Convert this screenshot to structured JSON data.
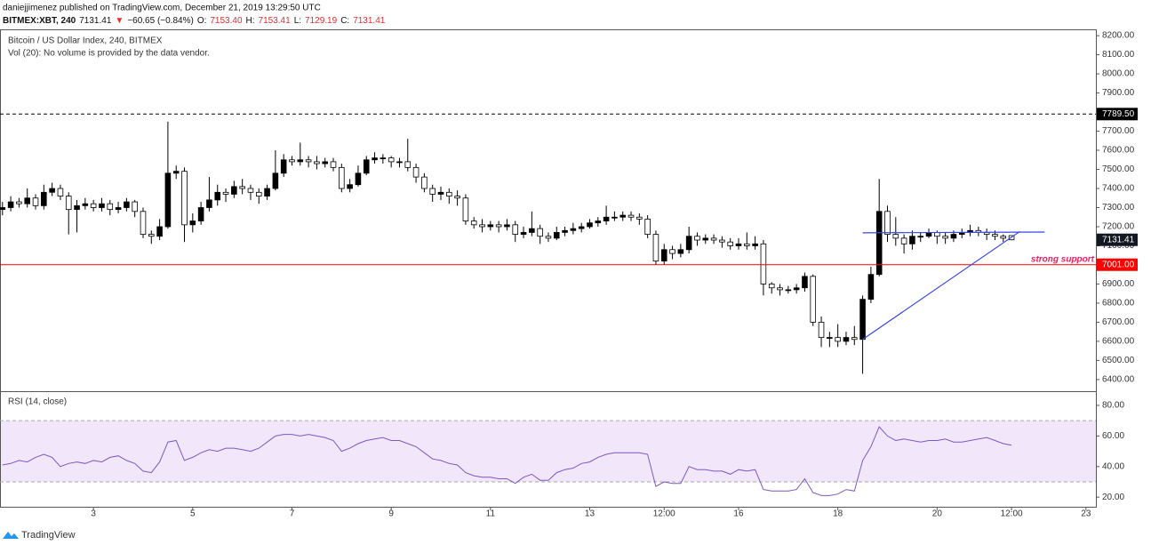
{
  "header": {
    "author": "daniejjimenez published on TradingView.com, December 21, 2019 13:29:50 UTC",
    "quote": [
      {
        "text": "BITMEX:XBT, 240",
        "color": "#111",
        "bold": true
      },
      {
        "text": "7131.41",
        "color": "#111"
      },
      {
        "text": "▼",
        "color": "#e03030"
      },
      {
        "text": "−60.65 (−0.84%)",
        "color": "#111"
      },
      {
        "text": "O:",
        "color": "#111"
      },
      {
        "text": "7153.40",
        "color": "#e03030"
      },
      {
        "text": "H:",
        "color": "#111"
      },
      {
        "text": "7153.41",
        "color": "#e03030"
      },
      {
        "text": "L:",
        "color": "#111"
      },
      {
        "text": "7129.19",
        "color": "#e03030"
      },
      {
        "text": "C:",
        "color": "#111"
      },
      {
        "text": "7131.41",
        "color": "#e03030"
      }
    ]
  },
  "footer": {
    "brand": "TradingView"
  },
  "chart_data": [
    {
      "type": "candlestick",
      "title": "Bitcoin / US Dollar Index, 240, BITMEX",
      "subtitle": "Vol (20): No volume is provided by the data vendor.",
      "up_color": "#000000",
      "down_color": "#ffffff",
      "open": [
        7290,
        7300,
        7330,
        7320,
        7350,
        7310,
        7380,
        7400,
        7360,
        7290,
        7310,
        7320,
        7300,
        7320,
        7290,
        7300,
        7330,
        7280,
        7160,
        7150,
        7200,
        7480,
        7490,
        7210,
        7230,
        7300,
        7340,
        7380,
        7370,
        7410,
        7400,
        7380,
        7360,
        7400,
        7480,
        7550,
        7540,
        7550,
        7540,
        7530,
        7540,
        7510,
        7400,
        7420,
        7480,
        7550,
        7560,
        7560,
        7540,
        7540,
        7510,
        7460,
        7400,
        7370,
        7380,
        7360,
        7350,
        7230,
        7210,
        7200,
        7210,
        7200,
        7210,
        7160,
        7170,
        7190,
        7150,
        7140,
        7170,
        7180,
        7190,
        7200,
        7220,
        7230,
        7250,
        7250,
        7260,
        7250,
        7240,
        7160,
        7020,
        7080,
        7060,
        7080,
        7150,
        7130,
        7140,
        7130,
        7120,
        7100,
        7110,
        7100,
        7110,
        6900,
        6880,
        6870,
        6870,
        6880,
        6940,
        6700,
        6620,
        6620,
        6600,
        6620,
        6610,
        6820,
        6950,
        7280,
        7160,
        7140,
        7110,
        7150,
        7150,
        7170,
        7150,
        7140,
        7160,
        7170,
        7180,
        7170,
        7160,
        7150,
        7153.4
      ],
      "high": [
        7330,
        7360,
        7350,
        7400,
        7370,
        7420,
        7430,
        7420,
        7380,
        7340,
        7350,
        7340,
        7350,
        7340,
        7330,
        7350,
        7340,
        7300,
        7180,
        7240,
        7750,
        7520,
        7510,
        7270,
        7330,
        7460,
        7420,
        7400,
        7440,
        7450,
        7420,
        7400,
        7420,
        7600,
        7580,
        7570,
        7640,
        7570,
        7570,
        7560,
        7560,
        7530,
        7450,
        7520,
        7570,
        7590,
        7580,
        7570,
        7560,
        7660,
        7530,
        7480,
        7420,
        7410,
        7400,
        7390,
        7370,
        7250,
        7240,
        7230,
        7230,
        7240,
        7230,
        7200,
        7280,
        7210,
        7170,
        7200,
        7200,
        7220,
        7220,
        7240,
        7250,
        7310,
        7280,
        7280,
        7280,
        7270,
        7260,
        7180,
        7110,
        7100,
        7110,
        7200,
        7170,
        7160,
        7160,
        7150,
        7140,
        7140,
        7170,
        7150,
        7130,
        6910,
        6900,
        6890,
        6900,
        6960,
        6950,
        6730,
        6650,
        6690,
        6650,
        6680,
        6840,
        6990,
        7450,
        7310,
        7250,
        7160,
        7180,
        7170,
        7190,
        7180,
        7170,
        7180,
        7190,
        7210,
        7200,
        7190,
        7180,
        7160,
        7153.41
      ],
      "low": [
        7260,
        7280,
        7300,
        7300,
        7290,
        7290,
        7360,
        7340,
        7160,
        7170,
        7290,
        7280,
        7280,
        7260,
        7270,
        7280,
        7250,
        7140,
        7110,
        7130,
        7190,
        7450,
        7120,
        7170,
        7210,
        7280,
        7310,
        7330,
        7350,
        7370,
        7340,
        7320,
        7340,
        7390,
        7460,
        7520,
        7520,
        7510,
        7500,
        7510,
        7490,
        7380,
        7380,
        7410,
        7470,
        7530,
        7530,
        7510,
        7510,
        7490,
        7430,
        7380,
        7330,
        7340,
        7320,
        7310,
        7210,
        7190,
        7170,
        7180,
        7170,
        7180,
        7120,
        7140,
        7150,
        7110,
        7120,
        7130,
        7150,
        7160,
        7170,
        7190,
        7200,
        7210,
        7230,
        7230,
        7230,
        7210,
        7140,
        7000,
        7000,
        7030,
        7040,
        7060,
        7100,
        7110,
        7110,
        7090,
        7080,
        7080,
        7080,
        7080,
        6840,
        6850,
        6840,
        6850,
        6850,
        6860,
        6680,
        6570,
        6570,
        6570,
        6580,
        6580,
        6430,
        6800,
        6940,
        7120,
        7100,
        7060,
        7080,
        7120,
        7140,
        7110,
        7110,
        7120,
        7140,
        7150,
        7150,
        7130,
        7130,
        7120,
        7129.19
      ],
      "close": [
        7300,
        7330,
        7320,
        7350,
        7310,
        7380,
        7400,
        7360,
        7290,
        7310,
        7320,
        7300,
        7320,
        7290,
        7300,
        7330,
        7280,
        7160,
        7150,
        7200,
        7480,
        7490,
        7210,
        7230,
        7300,
        7340,
        7380,
        7370,
        7410,
        7400,
        7380,
        7360,
        7400,
        7480,
        7550,
        7540,
        7550,
        7540,
        7530,
        7540,
        7510,
        7400,
        7420,
        7480,
        7550,
        7560,
        7560,
        7540,
        7540,
        7510,
        7460,
        7400,
        7370,
        7380,
        7360,
        7350,
        7230,
        7210,
        7200,
        7210,
        7200,
        7210,
        7160,
        7170,
        7190,
        7150,
        7140,
        7170,
        7180,
        7190,
        7200,
        7220,
        7230,
        7250,
        7250,
        7260,
        7250,
        7240,
        7160,
        7020,
        7080,
        7060,
        7080,
        7150,
        7130,
        7140,
        7130,
        7120,
        7100,
        7110,
        7100,
        7110,
        6900,
        6880,
        6870,
        6870,
        6880,
        6940,
        6700,
        6620,
        6620,
        6600,
        6620,
        6610,
        6820,
        6950,
        7280,
        7160,
        7140,
        7110,
        7150,
        7150,
        7170,
        7150,
        7140,
        7160,
        7170,
        7180,
        7170,
        7160,
        7150,
        7140,
        7131.41
      ],
      "xlim": [
        -0.3,
        132.2
      ],
      "xticks": [
        {
          "value": 11,
          "label": "3"
        },
        {
          "value": 23,
          "label": "5"
        },
        {
          "value": 35,
          "label": "7"
        },
        {
          "value": 47,
          "label": "9"
        },
        {
          "value": 59,
          "label": "11"
        },
        {
          "value": 71,
          "label": "13"
        },
        {
          "value": 80,
          "label": "12:00"
        },
        {
          "value": 89,
          "label": "16"
        },
        {
          "value": 101,
          "label": "18"
        },
        {
          "value": 113,
          "label": "20"
        },
        {
          "value": 122,
          "label": "12:00"
        },
        {
          "value": 131,
          "label": "23"
        }
      ],
      "ylim": [
        6339,
        8233
      ],
      "yticks": [
        {
          "value": 6400,
          "label": "6400.00"
        },
        {
          "value": 6500,
          "label": "6500.00"
        },
        {
          "value": 6600,
          "label": "6600.00"
        },
        {
          "value": 6700,
          "label": "6700.00"
        },
        {
          "value": 6800,
          "label": "6800.00"
        },
        {
          "value": 6900,
          "label": "6900.00"
        },
        {
          "value": 7000,
          "label": "7000.00"
        },
        {
          "value": 7100,
          "label": "7100.00"
        },
        {
          "value": 7200,
          "label": "7200.00"
        },
        {
          "value": 7300,
          "label": "7300.00"
        },
        {
          "value": 7400,
          "label": "7400.00"
        },
        {
          "value": 7500,
          "label": "7500.00"
        },
        {
          "value": 7600,
          "label": "7600.00"
        },
        {
          "value": 7700,
          "label": "7700.00"
        },
        {
          "value": 7800,
          "label": "7800.00"
        },
        {
          "value": 7900,
          "label": "7900.00"
        },
        {
          "value": 8000,
          "label": "8000.00"
        },
        {
          "value": 8100,
          "label": "8100.00"
        },
        {
          "value": 8200,
          "label": "8200.00"
        }
      ],
      "levels": [
        {
          "value": 7789.5,
          "label": "7789.50",
          "color": "#000000",
          "dashed": true
        },
        {
          "value": 7001,
          "label": "7001.00",
          "color": "#ff0000",
          "dashed": false,
          "text": "strong support",
          "text_color": "#e91e63"
        }
      ],
      "last_price_color": "#131722",
      "trendlines": [
        {
          "x": [
            104,
            123
          ],
          "y": [
            6610,
            7175
          ],
          "color": "#3848e8"
        },
        {
          "x": [
            104,
            126
          ],
          "y": [
            7168,
            7172
          ],
          "color": "#3848e8"
        }
      ],
      "grid": false
    },
    {
      "type": "line",
      "title": "RSI (14, close)",
      "color": "#7e57c2",
      "band_color": "#f2e6fb",
      "bands": [
        30,
        70
      ],
      "values": [
        41,
        42,
        44,
        43,
        46,
        48,
        46,
        40,
        42,
        43,
        42,
        44,
        43,
        46,
        47,
        44,
        42,
        37,
        36,
        43,
        56,
        57,
        44,
        46,
        49,
        51,
        50,
        52,
        52,
        51,
        50,
        52,
        56,
        60,
        61,
        61,
        60,
        61,
        60,
        59,
        57,
        50,
        52,
        55,
        57,
        58,
        59,
        57,
        57,
        55,
        53,
        49,
        45,
        44,
        42,
        41,
        36,
        34,
        33,
        33,
        32,
        32,
        29,
        33,
        35,
        31,
        31,
        36,
        38,
        39,
        42,
        43,
        46,
        48,
        49,
        49,
        49,
        49,
        48,
        27,
        30,
        29,
        29,
        40,
        38,
        38,
        37,
        37,
        35,
        38,
        37,
        38,
        25,
        24,
        24,
        24,
        25,
        32,
        23,
        21,
        21,
        22,
        25,
        24,
        44,
        53,
        66,
        60,
        57,
        58,
        57,
        56,
        57,
        57,
        58,
        56,
        56,
        57,
        58,
        59,
        57,
        55,
        54
      ],
      "ylim": [
        13.7,
        88.7
      ],
      "yticks": [
        {
          "value": 20,
          "label": "20.00"
        },
        {
          "value": 40,
          "label": "40.00"
        },
        {
          "value": 60,
          "label": "60.00"
        },
        {
          "value": 80,
          "label": "80.00"
        }
      ],
      "grid": false
    }
  ]
}
